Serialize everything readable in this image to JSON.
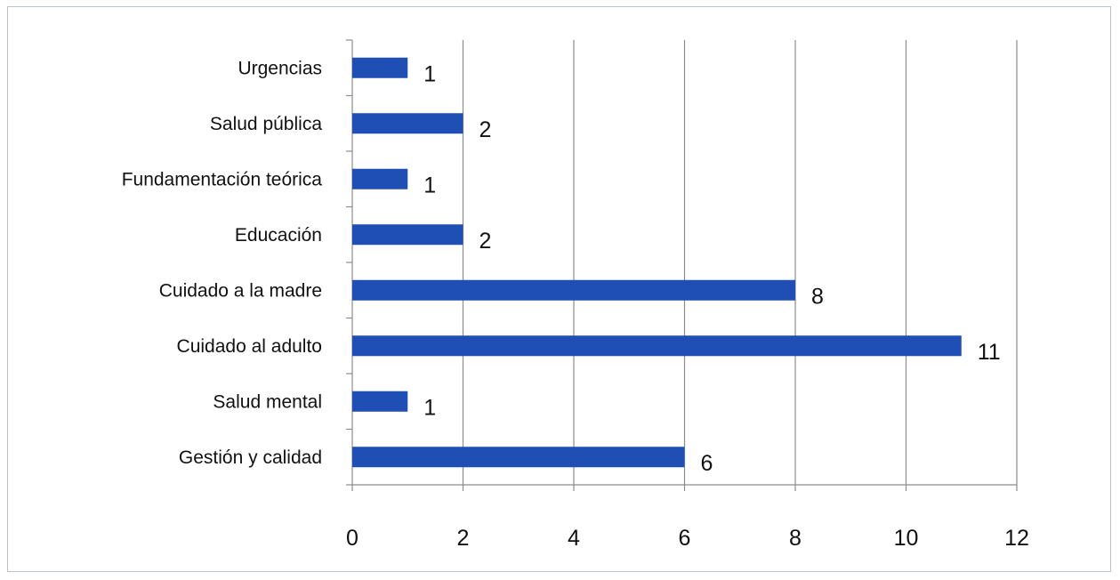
{
  "chart_data": {
    "type": "bar",
    "orientation": "horizontal",
    "categories": [
      "Urgencias",
      "Salud pública",
      "Fundamentación teórica",
      "Educación",
      "Cuidado a la madre",
      "Cuidado al adulto",
      "Salud mental",
      "Gestión y calidad"
    ],
    "values": [
      1,
      2,
      1,
      2,
      8,
      11,
      1,
      6
    ],
    "data_labels": [
      "1",
      "2",
      "1",
      "2",
      "8",
      "11",
      "1",
      "6"
    ],
    "x_ticks": [
      "0",
      "2",
      "4",
      "6",
      "8",
      "10",
      "12"
    ],
    "xlim": [
      0,
      12
    ],
    "title": "",
    "xlabel": "",
    "ylabel": "",
    "grid": "vertical",
    "legend": "none",
    "bar_color": "#1f4fb4",
    "grid_color": "#8c8c8c"
  }
}
